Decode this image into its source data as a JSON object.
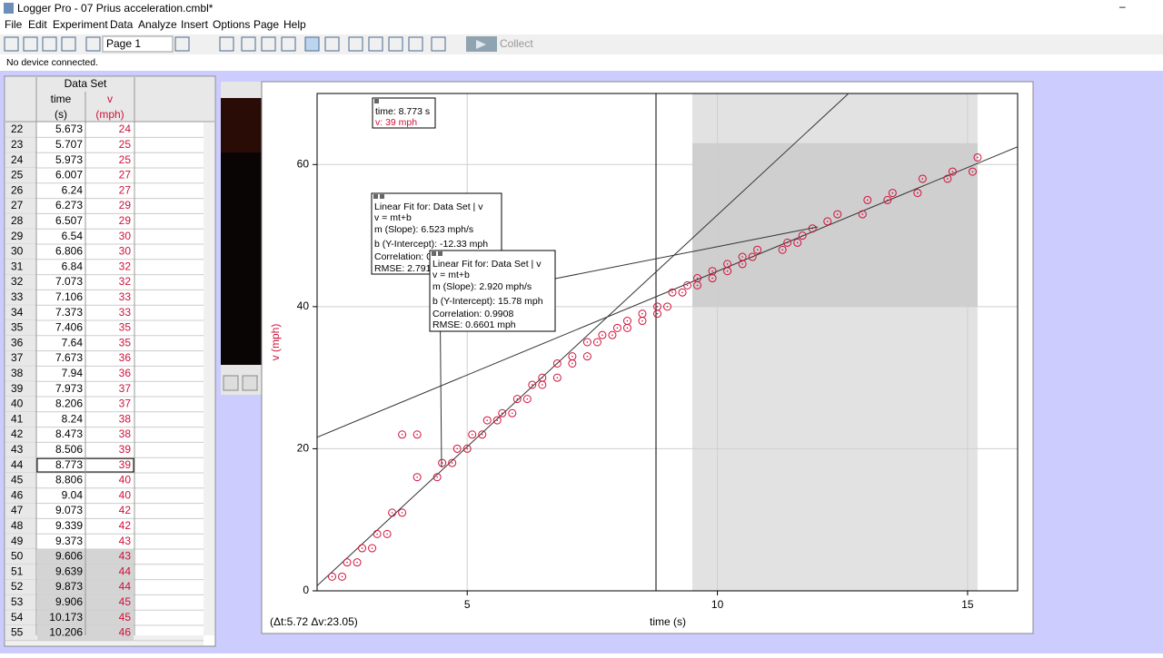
{
  "window": {
    "title": "Logger Pro - 07 Prius acceleration.cmbl*"
  },
  "menu": [
    "File",
    "Edit",
    "Experiment",
    "Data",
    "Analyze",
    "Insert",
    "Options",
    "Page",
    "Help"
  ],
  "toolbar": {
    "page": "Page 1",
    "collect": "Collect"
  },
  "status": "No device connected.",
  "table": {
    "title": "Data Set",
    "columns": [
      {
        "name": "time",
        "unit": "(s)"
      },
      {
        "name": "v",
        "unit": "(mph)"
      }
    ],
    "rows": [
      [
        22,
        5.673,
        24
      ],
      [
        23,
        5.707,
        25
      ],
      [
        24,
        5.973,
        25
      ],
      [
        25,
        6.007,
        27
      ],
      [
        26,
        6.24,
        27
      ],
      [
        27,
        6.273,
        29
      ],
      [
        28,
        6.507,
        29
      ],
      [
        29,
        6.54,
        30
      ],
      [
        30,
        6.806,
        30
      ],
      [
        31,
        6.84,
        32
      ],
      [
        32,
        7.073,
        32
      ],
      [
        33,
        7.106,
        33
      ],
      [
        34,
        7.373,
        33
      ],
      [
        35,
        7.406,
        35
      ],
      [
        36,
        7.64,
        35
      ],
      [
        37,
        7.673,
        36
      ],
      [
        38,
        7.94,
        36
      ],
      [
        39,
        7.973,
        37
      ],
      [
        40,
        8.206,
        37
      ],
      [
        41,
        8.24,
        38
      ],
      [
        42,
        8.473,
        38
      ],
      [
        43,
        8.506,
        39
      ],
      [
        44,
        8.773,
        39
      ],
      [
        45,
        8.806,
        40
      ],
      [
        46,
        9.04,
        40
      ],
      [
        47,
        9.073,
        42
      ],
      [
        48,
        9.339,
        42
      ],
      [
        49,
        9.373,
        43
      ],
      [
        50,
        9.606,
        43
      ],
      [
        51,
        9.639,
        44
      ],
      [
        52,
        9.873,
        44
      ],
      [
        53,
        9.906,
        45
      ],
      [
        54,
        10.173,
        45
      ],
      [
        55,
        10.206,
        46
      ]
    ]
  },
  "chart_data": {
    "type": "scatter",
    "x_label": "time (s)",
    "y_label": "v (mph)",
    "xlim": [
      2,
      16
    ],
    "ylim": [
      0,
      70
    ],
    "xticks": [
      5,
      10,
      15
    ],
    "yticks": [
      0,
      20,
      40,
      60
    ],
    "grid": true,
    "series": [
      {
        "color": "#d0103a",
        "x": [
          2.3,
          2.5,
          2.6,
          2.8,
          2.9,
          3.1,
          3.2,
          3.4,
          3.5,
          3.7,
          3.7,
          4.0,
          4.0,
          4.4,
          4.5,
          4.7,
          4.8,
          5.0,
          5.1,
          5.3,
          5.4,
          5.6,
          5.7,
          5.9,
          6.0,
          6.2,
          6.3,
          6.5,
          6.5,
          6.8,
          6.8,
          7.1,
          7.1,
          7.4,
          7.4,
          7.6,
          7.7,
          7.9,
          8.0,
          8.2,
          8.2,
          8.5,
          8.5,
          8.8,
          8.8,
          9.0,
          9.1,
          9.3,
          9.4,
          9.6,
          9.6,
          9.9,
          9.9,
          10.2,
          10.2,
          10.5,
          10.5,
          10.7,
          10.8,
          11.3,
          11.4,
          11.6,
          11.7,
          11.9,
          12.2,
          12.4,
          12.9,
          13.0,
          13.4,
          13.5,
          14.0,
          14.1,
          14.6,
          14.7,
          15.1,
          15.2
        ],
        "values": [
          2,
          2,
          4,
          4,
          6,
          6,
          8,
          8,
          11,
          11,
          22,
          22,
          16,
          16,
          18,
          18,
          20,
          20,
          22,
          22,
          24,
          24,
          25,
          25,
          27,
          27,
          29,
          29,
          30,
          30,
          32,
          32,
          33,
          33,
          35,
          35,
          36,
          36,
          37,
          37,
          38,
          38,
          39,
          39,
          40,
          40,
          42,
          42,
          43,
          43,
          44,
          44,
          45,
          45,
          46,
          46,
          47,
          47,
          48,
          48,
          49,
          49,
          50,
          51,
          52,
          53,
          53,
          55,
          55,
          56,
          56,
          58,
          58,
          59,
          59,
          61
        ]
      }
    ],
    "fits": [
      {
        "slope": 6.523,
        "intercept": -12.33,
        "lines": [
          "Linear Fit for: Data Set | v",
          "v = mt+b",
          "m (Slope): 6.523 mph/s",
          "b (Y-Intercept): -12.33 mph",
          "Correlation: 0",
          "RMSE: 2.791"
        ]
      },
      {
        "slope": 2.92,
        "intercept": 15.78,
        "lines": [
          "Linear Fit for: Data Set | v",
          "v = mt+b",
          "m (Slope): 2.920 mph/s",
          "b (Y-Intercept): 15.78 mph",
          "Correlation: 0.9908",
          "RMSE: 0.6601 mph"
        ]
      }
    ],
    "examine": {
      "x": 8.773,
      "lines": [
        "time: 8.773 s",
        "v: 39 mph"
      ]
    },
    "selection": [
      9.5,
      15.2
    ],
    "highlight_y": [
      40,
      63
    ],
    "delta": "(Δt:5.72 Δv:23.05)"
  }
}
